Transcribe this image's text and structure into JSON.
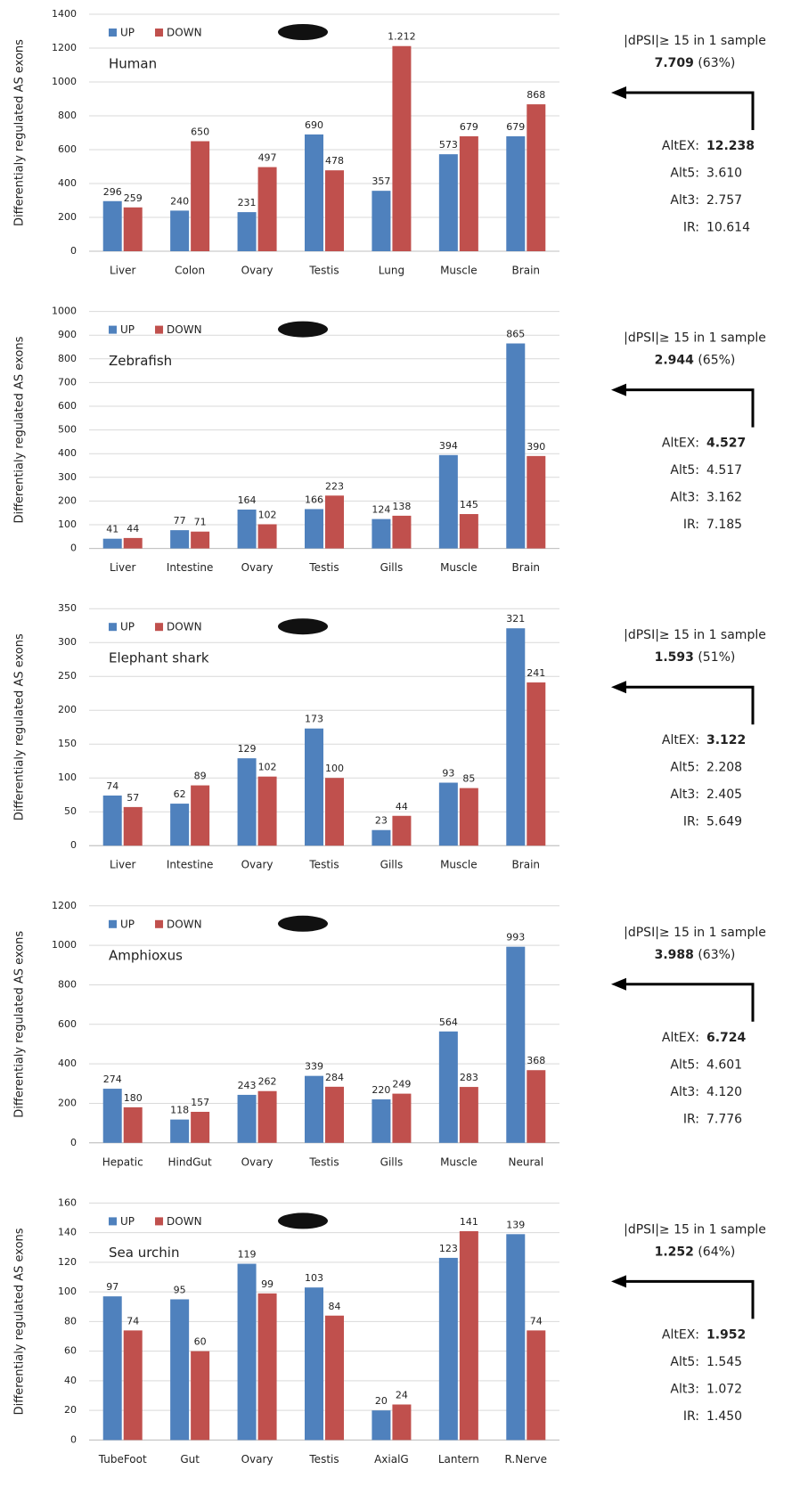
{
  "chart_data": [
    {
      "type": "bar",
      "title": "Human",
      "y_label": "Differentialy regulated AS exons",
      "categories": [
        "Liver",
        "Colon",
        "Ovary",
        "Testis",
        "Lung",
        "Muscle",
        "Brain"
      ],
      "series": [
        {
          "name": "UP",
          "color": "#4f81bd",
          "label_color": "#4f81bd",
          "values": [
            296,
            240,
            231,
            690,
            357,
            573,
            679
          ]
        },
        {
          "name": "DOWN",
          "color": "#c0504d",
          "label_color": "#ff0000",
          "values": [
            259,
            650,
            497,
            478,
            1212,
            679,
            868
          ],
          "value_labels": [
            "259",
            "650",
            "497",
            "478",
            "1.212",
            "679",
            "868"
          ]
        }
      ],
      "ylim": [
        0,
        1400
      ],
      "yticks": [
        0,
        200,
        400,
        600,
        800,
        1000,
        1200,
        1400
      ],
      "grid": true,
      "annotations": {
        "header": "|dPSI|≥ 15 in 1 sample",
        "total": "7.709",
        "percent": "(63%)",
        "stats": [
          {
            "label": "AltEX:",
            "value": "12.238"
          },
          {
            "label": "Alt5:",
            "value": "3.610"
          },
          {
            "label": "Alt3:",
            "value": "2.757"
          },
          {
            "label": "IR:",
            "value": "10.614"
          }
        ]
      }
    },
    {
      "type": "bar",
      "title": "Zebrafish",
      "y_label": "Differentialy regulated AS exons",
      "categories": [
        "Liver",
        "Intestine",
        "Ovary",
        "Testis",
        "Gills",
        "Muscle",
        "Brain"
      ],
      "series": [
        {
          "name": "UP",
          "color": "#4f81bd",
          "label_color": "#4f81bd",
          "values": [
            41,
            77,
            164,
            166,
            124,
            394,
            865
          ]
        },
        {
          "name": "DOWN",
          "color": "#c0504d",
          "label_color": "#ff0000",
          "values": [
            44,
            71,
            102,
            223,
            138,
            145,
            390
          ]
        }
      ],
      "ylim": [
        0,
        1000
      ],
      "yticks": [
        0,
        100,
        200,
        300,
        400,
        500,
        600,
        700,
        800,
        900,
        1000
      ],
      "grid": true,
      "annotations": {
        "header": "|dPSI|≥ 15 in 1 sample",
        "total": "2.944",
        "percent": "(65%)",
        "stats": [
          {
            "label": "AltEX:",
            "value": "4.527"
          },
          {
            "label": "Alt5:",
            "value": "4.517"
          },
          {
            "label": "Alt3:",
            "value": "3.162"
          },
          {
            "label": "IR:",
            "value": "7.185"
          }
        ]
      }
    },
    {
      "type": "bar",
      "title": "Elephant shark",
      "y_label": "Differentialy regulated AS exons",
      "categories": [
        "Liver",
        "Intestine",
        "Ovary",
        "Testis",
        "Gills",
        "Muscle",
        "Brain"
      ],
      "series": [
        {
          "name": "UP",
          "color": "#4f81bd",
          "label_color": "#4f81bd",
          "values": [
            74,
            62,
            129,
            173,
            23,
            93,
            321
          ]
        },
        {
          "name": "DOWN",
          "color": "#c0504d",
          "label_color": "#ff0000",
          "values": [
            57,
            89,
            102,
            100,
            44,
            85,
            241
          ]
        }
      ],
      "ylim": [
        0,
        350
      ],
      "yticks": [
        0,
        50,
        100,
        150,
        200,
        250,
        300,
        350
      ],
      "grid": true,
      "annotations": {
        "header": "|dPSI|≥ 15 in 1 sample",
        "total": "1.593",
        "percent": "(51%)",
        "stats": [
          {
            "label": "AltEX:",
            "value": "3.122"
          },
          {
            "label": "Alt5:",
            "value": "2.208"
          },
          {
            "label": "Alt3:",
            "value": "2.405"
          },
          {
            "label": "IR:",
            "value": "5.649"
          }
        ]
      }
    },
    {
      "type": "bar",
      "title": "Amphioxus",
      "y_label": "Differentialy regulated AS exons",
      "categories": [
        "Hepatic",
        "HindGut",
        "Ovary",
        "Testis",
        "Gills",
        "Muscle",
        "Neural"
      ],
      "series": [
        {
          "name": "UP",
          "color": "#4f81bd",
          "label_color": "#4f81bd",
          "values": [
            274,
            118,
            243,
            339,
            220,
            564,
            993
          ]
        },
        {
          "name": "DOWN",
          "color": "#c0504d",
          "label_color": "#ff0000",
          "values": [
            180,
            157,
            262,
            284,
            249,
            283,
            368
          ]
        }
      ],
      "ylim": [
        0,
        1200
      ],
      "yticks": [
        0,
        200,
        400,
        600,
        800,
        1000,
        1200
      ],
      "grid": true,
      "annotations": {
        "header": "|dPSI|≥ 15 in 1 sample",
        "total": "3.988",
        "percent": "(63%)",
        "stats": [
          {
            "label": "AltEX:",
            "value": "6.724"
          },
          {
            "label": "Alt5:",
            "value": "4.601"
          },
          {
            "label": "Alt3:",
            "value": "4.120"
          },
          {
            "label": "IR:",
            "value": "7.776"
          }
        ]
      }
    },
    {
      "type": "bar",
      "title": "Sea urchin",
      "y_label": "Differentialy regulated AS exons",
      "categories": [
        "TubeFoot",
        "Gut",
        "Ovary",
        "Testis",
        "AxialG",
        "Lantern",
        "R.Nerve"
      ],
      "series": [
        {
          "name": "UP",
          "color": "#4f81bd",
          "label_color": "#4f81bd",
          "values": [
            97,
            95,
            119,
            103,
            20,
            123,
            139
          ]
        },
        {
          "name": "DOWN",
          "color": "#c0504d",
          "label_color": "#ff0000",
          "values": [
            74,
            60,
            99,
            84,
            24,
            141,
            74
          ]
        }
      ],
      "ylim": [
        0,
        160
      ],
      "yticks": [
        0,
        20,
        40,
        60,
        80,
        100,
        120,
        140,
        160
      ],
      "grid": true,
      "annotations": {
        "header": "|dPSI|≥ 15 in 1 sample",
        "total": "1.252",
        "percent": "(64%)",
        "stats": [
          {
            "label": "AltEX:",
            "value": "1.952"
          },
          {
            "label": "Alt5:",
            "value": "1.545"
          },
          {
            "label": "Alt3:",
            "value": "1.072"
          },
          {
            "label": "IR:",
            "value": "1.450"
          }
        ]
      }
    }
  ]
}
